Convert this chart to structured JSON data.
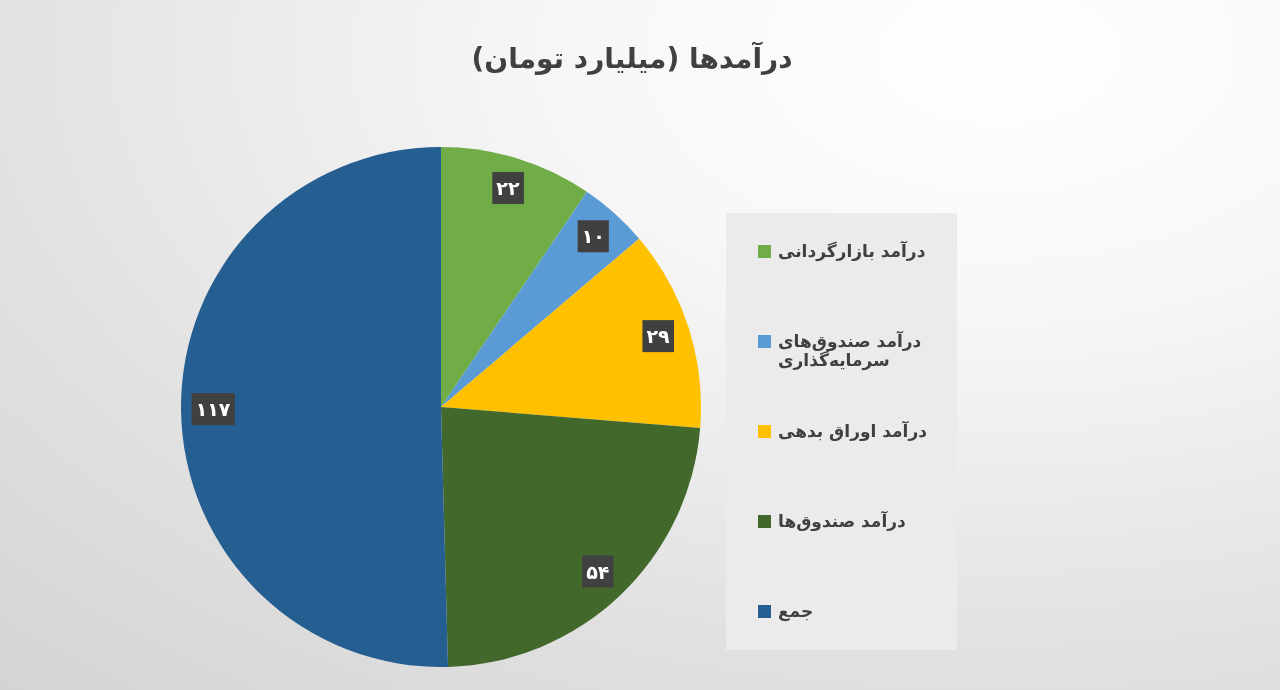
{
  "chart_data": {
    "type": "pie",
    "title": "درآمدها (میلیارد تومان)",
    "categories": [
      "درآمد بازارگردانی",
      "درآمد صندوق‌های سرمایه‌گذاری",
      "درآمد اوراق بدهی",
      "درآمد صندوق‌ها",
      "جمع"
    ],
    "values": [
      22,
      10,
      29,
      54,
      117
    ],
    "colors": [
      "#70ad47",
      "#5b9bd5",
      "#ffc000",
      "#43682b",
      "#255e91"
    ],
    "value_labels": [
      "۲۲",
      "۱۰",
      "۲۹",
      "۵۴",
      "۱۱۷"
    ],
    "legend": "right"
  }
}
